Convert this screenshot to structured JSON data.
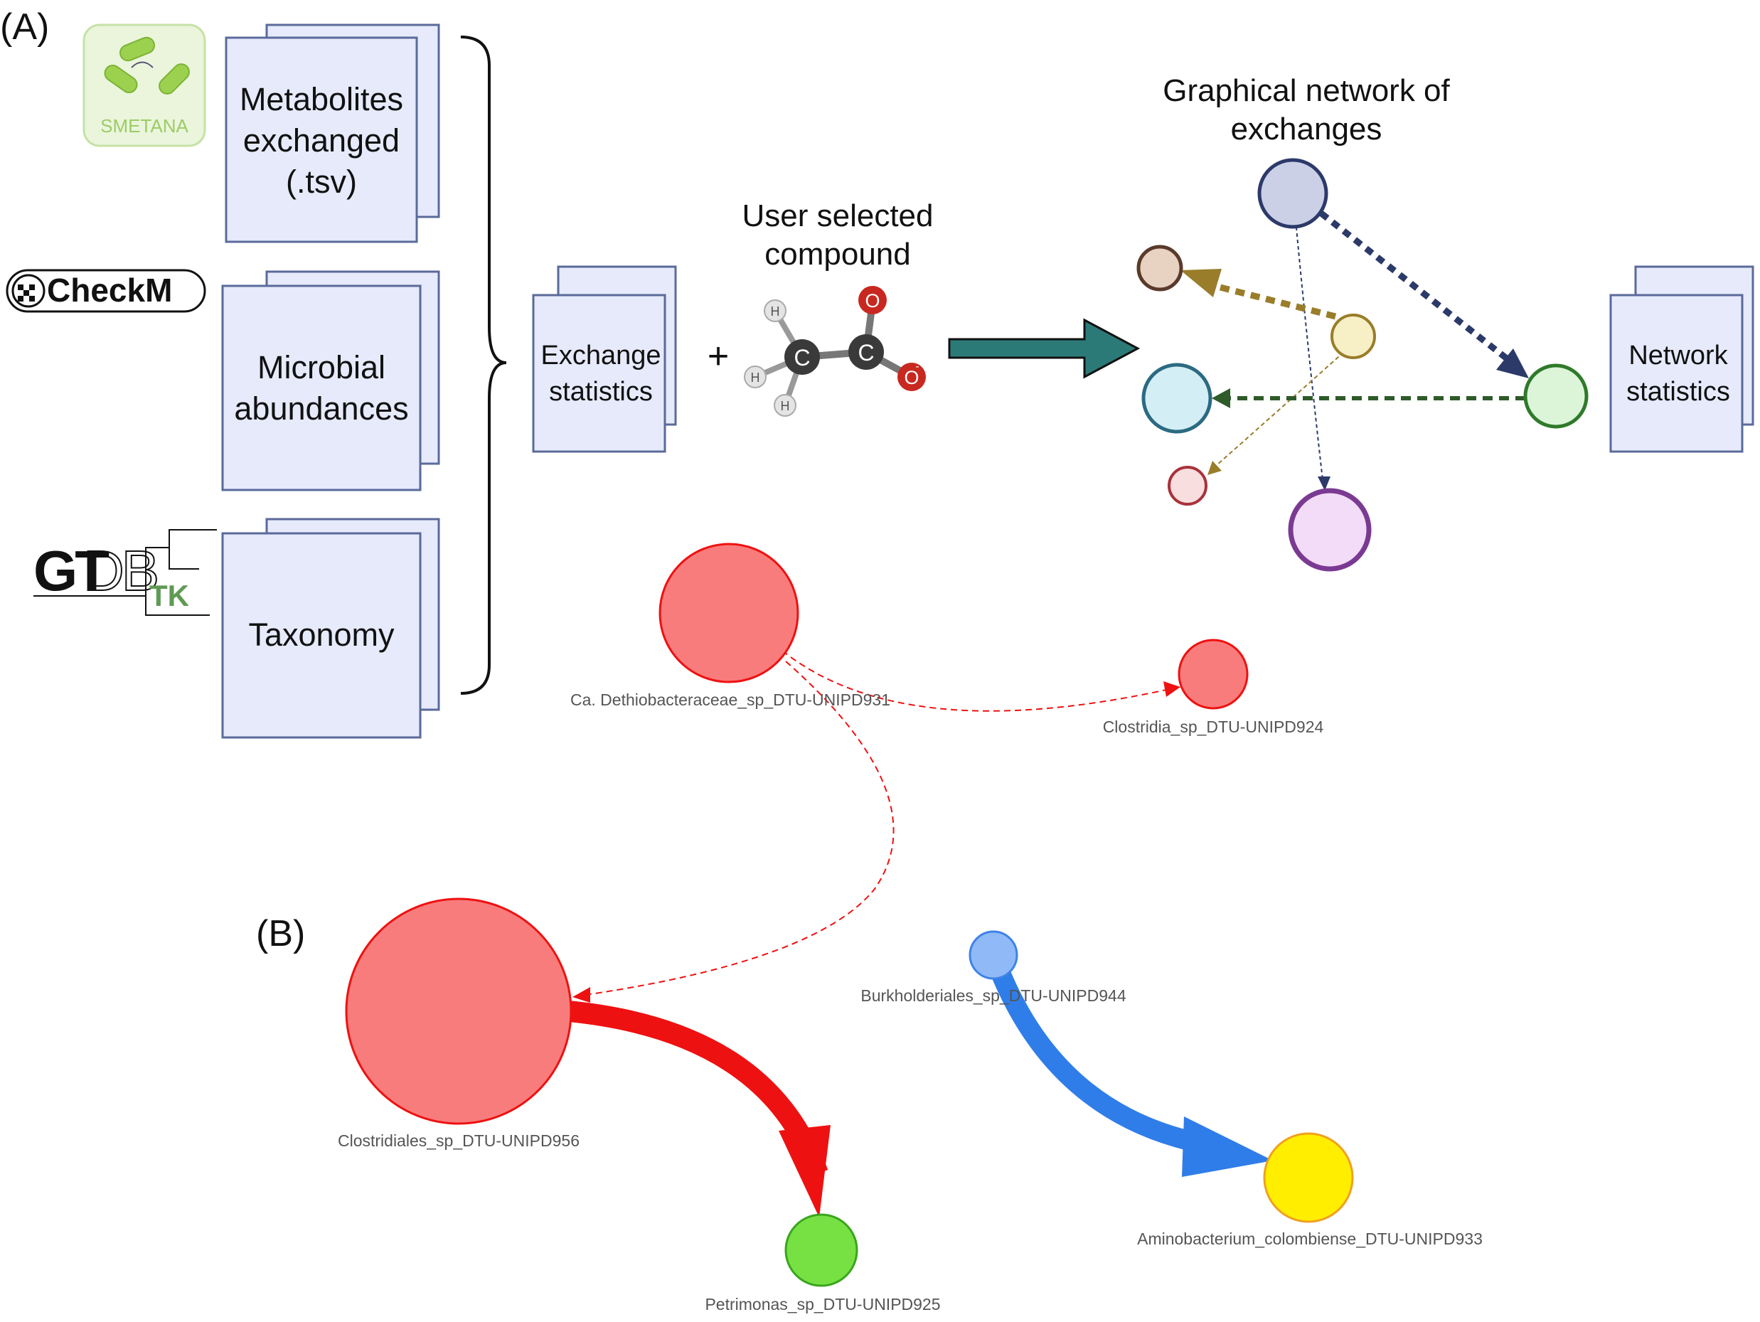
{
  "panel_a": {
    "label": "(A)",
    "tools": {
      "smetana": "SMETANA",
      "checkm": "CheckM",
      "gtdb_left": "GT",
      "gtdb_right": "DB",
      "gtdb_tk": "TK"
    },
    "inputs": {
      "metabolites": [
        "Metabolites",
        "exchanged",
        "(.tsv)"
      ],
      "abundances": [
        "Microbial",
        "abundances"
      ],
      "taxonomy": [
        "Taxonomy"
      ]
    },
    "exchange_statistics": [
      "Exchange",
      "statistics"
    ],
    "plus": "+",
    "user_selected": [
      "User selected",
      "compound"
    ],
    "molecule_atoms": {
      "carbon": "C",
      "oxygen": "O",
      "hydrogen": "H",
      "oxy_minus": "O",
      "charge": "-"
    },
    "graph_title": [
      "Graphical network of",
      "exchanges"
    ],
    "network_statistics": [
      "Network",
      "statistics"
    ]
  },
  "panel_b": {
    "label": "(B)",
    "nodes": [
      {
        "name": "Ca. Dethiobacteraceae_sp_DTU-UNIPD931",
        "color": "#f97c7c"
      },
      {
        "name": "Clostridia_sp_DTU-UNIPD924",
        "color": "#f97c7c"
      },
      {
        "name": "Clostridiales_sp_DTU-UNIPD956",
        "color": "#f97c7c"
      },
      {
        "name": "Petrimonas_sp_DTU-UNIPD925",
        "color": "#77e043"
      },
      {
        "name": "Burkholderiales_sp_DTU-UNIPD944",
        "color": "#8fbaf7"
      },
      {
        "name": "Aminobacterium_colombiense_DTU-UNIPD933",
        "color": "#ffee00"
      }
    ]
  },
  "colors": {
    "doc_fill": "#e6eafb",
    "doc_stroke": "#5a6a9a",
    "teal_arrow": "#2b7a78",
    "red_edge": "#ee1111",
    "blue_edge": "#2f7de8"
  }
}
